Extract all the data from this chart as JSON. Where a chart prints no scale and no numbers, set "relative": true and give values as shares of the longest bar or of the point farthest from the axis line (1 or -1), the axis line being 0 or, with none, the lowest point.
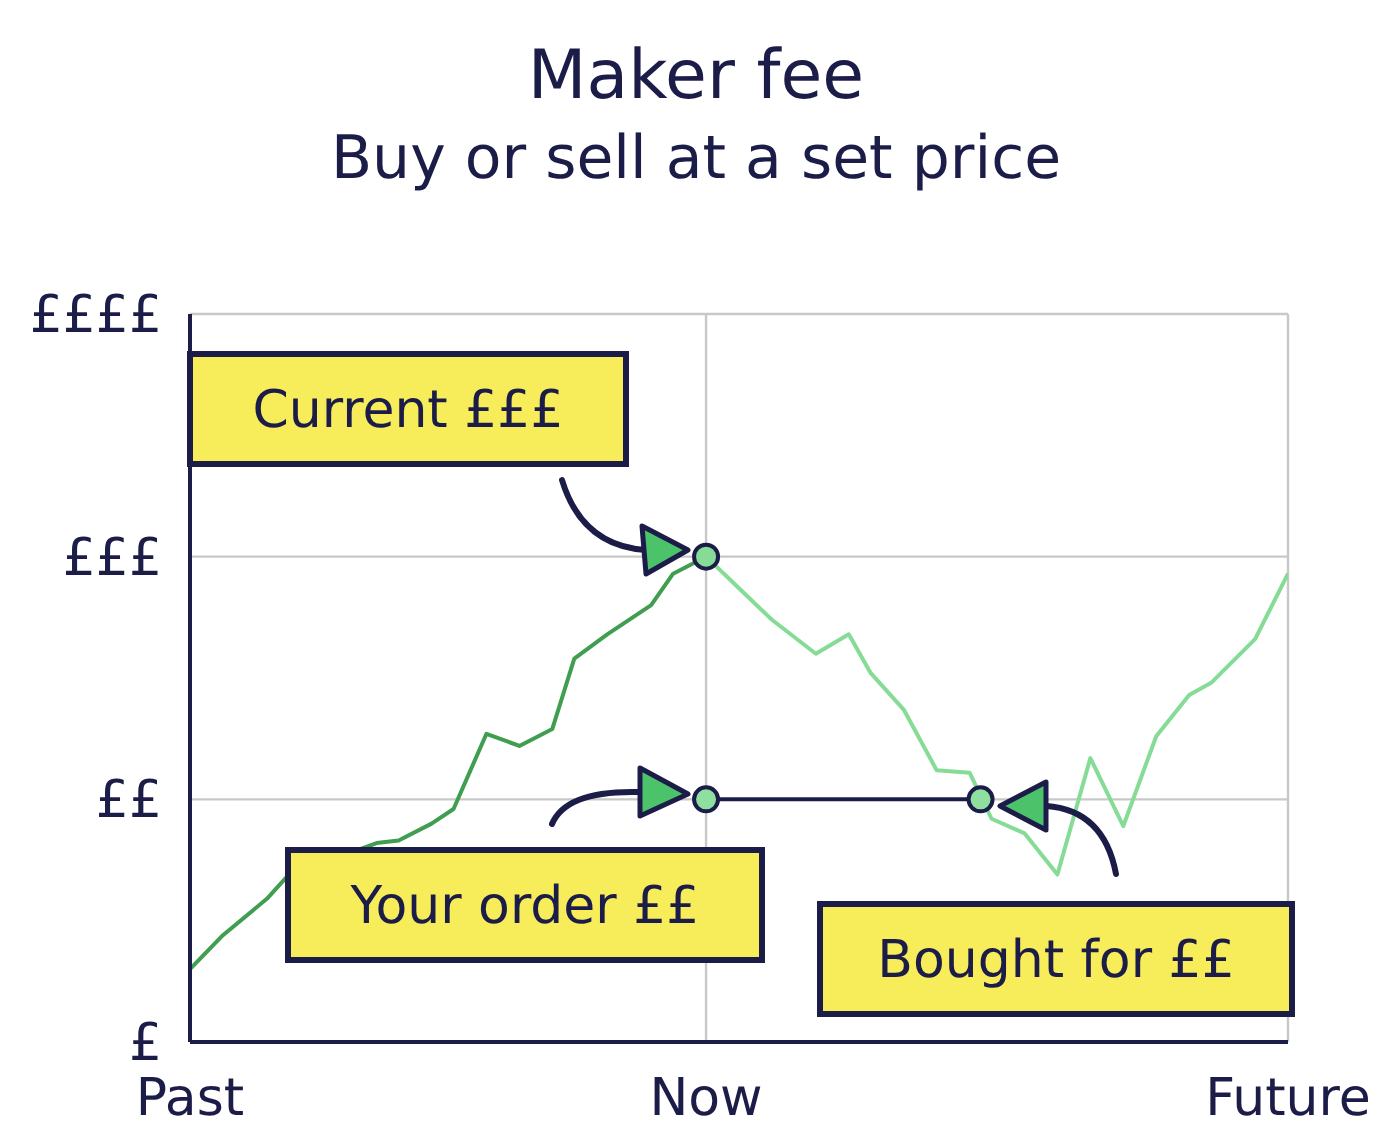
{
  "chart_data": {
    "type": "line",
    "title": "Maker fee",
    "subtitle": "Buy or sell at a set price",
    "relative": true,
    "categories": [
      "Past",
      null,
      null,
      null,
      null,
      null,
      null,
      null,
      null,
      null,
      null,
      null,
      null,
      null,
      null,
      null,
      null,
      null,
      null,
      null,
      null,
      null,
      null,
      null,
      null,
      null,
      null,
      null,
      null,
      null,
      null,
      null,
      null,
      null,
      null,
      null,
      null,
      null,
      null,
      null,
      null,
      null,
      null,
      null,
      null,
      null,
      null,
      "Now",
      null,
      null,
      null,
      null,
      null,
      null,
      null,
      null,
      null,
      null,
      null,
      null,
      null,
      null,
      null,
      null,
      null,
      null,
      null,
      null,
      null,
      null,
      null,
      null,
      null,
      null,
      null,
      null,
      null,
      null,
      null,
      null,
      null,
      null,
      null,
      null,
      null,
      null,
      null,
      null,
      null,
      null,
      null,
      null,
      null,
      null,
      null,
      null,
      null,
      null,
      null,
      null,
      "Future"
    ],
    "grid": true,
    "series": [
      {
        "color": "#3f9e4f",
        "values": [
          0.15,
          null,
          null,
          0.22,
          null,
          null,
          null,
          0.295,
          null,
          0.345,
          null,
          null,
          null,
          null,
          null,
          null,
          null,
          0.41,
          null,
          0.415,
          null,
          null,
          0.45,
          null,
          0.48,
          null,
          null,
          0.635,
          null,
          null,
          0.61,
          null,
          null,
          0.645,
          null,
          0.79,
          null,
          null,
          0.84,
          null,
          null,
          null,
          0.9,
          null,
          0.965,
          null,
          null,
          1.0,
          null,
          null,
          null,
          null,
          null,
          null,
          null,
          null,
          null,
          null,
          null,
          null,
          null,
          null,
          null,
          null,
          null,
          null,
          null,
          null,
          null,
          null,
          null,
          null,
          null,
          null,
          null,
          null,
          null,
          null,
          null,
          null,
          null,
          null,
          null,
          null,
          null,
          null,
          null,
          null,
          null,
          null,
          null,
          null,
          null,
          null,
          null,
          null,
          null,
          null,
          null,
          null,
          null
        ]
      },
      {
        "color": "#86dc96",
        "values": [
          null,
          null,
          null,
          null,
          null,
          null,
          null,
          null,
          null,
          null,
          null,
          null,
          null,
          null,
          null,
          null,
          null,
          null,
          null,
          null,
          null,
          null,
          null,
          null,
          null,
          null,
          null,
          null,
          null,
          null,
          null,
          null,
          null,
          null,
          null,
          null,
          null,
          null,
          null,
          null,
          null,
          null,
          null,
          null,
          null,
          null,
          null,
          1.0,
          null,
          null,
          0.935,
          null,
          null,
          0.87,
          null,
          null,
          null,
          0.8,
          null,
          null,
          0.84,
          null,
          0.76,
          null,
          null,
          0.685,
          null,
          null,
          0.56,
          null,
          null,
          0.555,
          null,
          0.46,
          null,
          null,
          0.43,
          null,
          null,
          0.345,
          null,
          null,
          0.585,
          null,
          null,
          0.445,
          null,
          null,
          0.63,
          null,
          null,
          0.715,
          null,
          0.74,
          null,
          null,
          null,
          0.83,
          null,
          null,
          0.965
        ]
      },
      {
        "color": "#1c1c48",
        "marker": "circle",
        "values": [
          null,
          null,
          null,
          null,
          null,
          null,
          null,
          null,
          null,
          null,
          null,
          null,
          null,
          null,
          null,
          null,
          null,
          null,
          null,
          null,
          null,
          null,
          null,
          null,
          null,
          null,
          null,
          null,
          null,
          null,
          null,
          null,
          null,
          null,
          null,
          null,
          null,
          null,
          null,
          null,
          null,
          null,
          null,
          null,
          null,
          null,
          null,
          0.5,
          null,
          null,
          null,
          null,
          null,
          null,
          null,
          null,
          null,
          null,
          null,
          null,
          null,
          null,
          null,
          null,
          null,
          null,
          null,
          null,
          null,
          null,
          null,
          null,
          0.5,
          null,
          null,
          null,
          null,
          null,
          null,
          null,
          null,
          null,
          null,
          null,
          null,
          null,
          null,
          null,
          null,
          null,
          null,
          null,
          null,
          null,
          null,
          null,
          null,
          null,
          null,
          null,
          null
        ]
      },
      {
        "type": "scatter",
        "color": "#86dc96",
        "values": [
          null,
          null,
          null,
          null,
          null,
          null,
          null,
          null,
          null,
          null,
          null,
          null,
          null,
          null,
          null,
          null,
          null,
          null,
          null,
          null,
          null,
          null,
          null,
          null,
          null,
          null,
          null,
          null,
          null,
          null,
          null,
          null,
          null,
          null,
          null,
          null,
          null,
          null,
          null,
          null,
          null,
          null,
          null,
          null,
          null,
          null,
          null,
          1.0,
          null,
          null,
          null,
          null,
          null,
          null,
          null,
          null,
          null,
          null,
          null,
          null,
          null,
          null,
          null,
          null,
          null,
          null,
          null,
          null,
          null,
          null,
          null,
          null,
          null,
          null,
          null,
          null,
          null,
          null,
          null,
          null,
          null,
          null,
          null,
          null,
          null,
          null,
          null,
          null,
          null,
          null,
          null,
          null,
          null,
          null,
          null,
          null,
          null,
          null,
          null,
          null,
          null
        ]
      }
    ],
    "annotations": [
      "£",
      "££",
      "£££",
      "££££",
      "Current £££",
      "Your order ££",
      "Bought for ££"
    ]
  }
}
